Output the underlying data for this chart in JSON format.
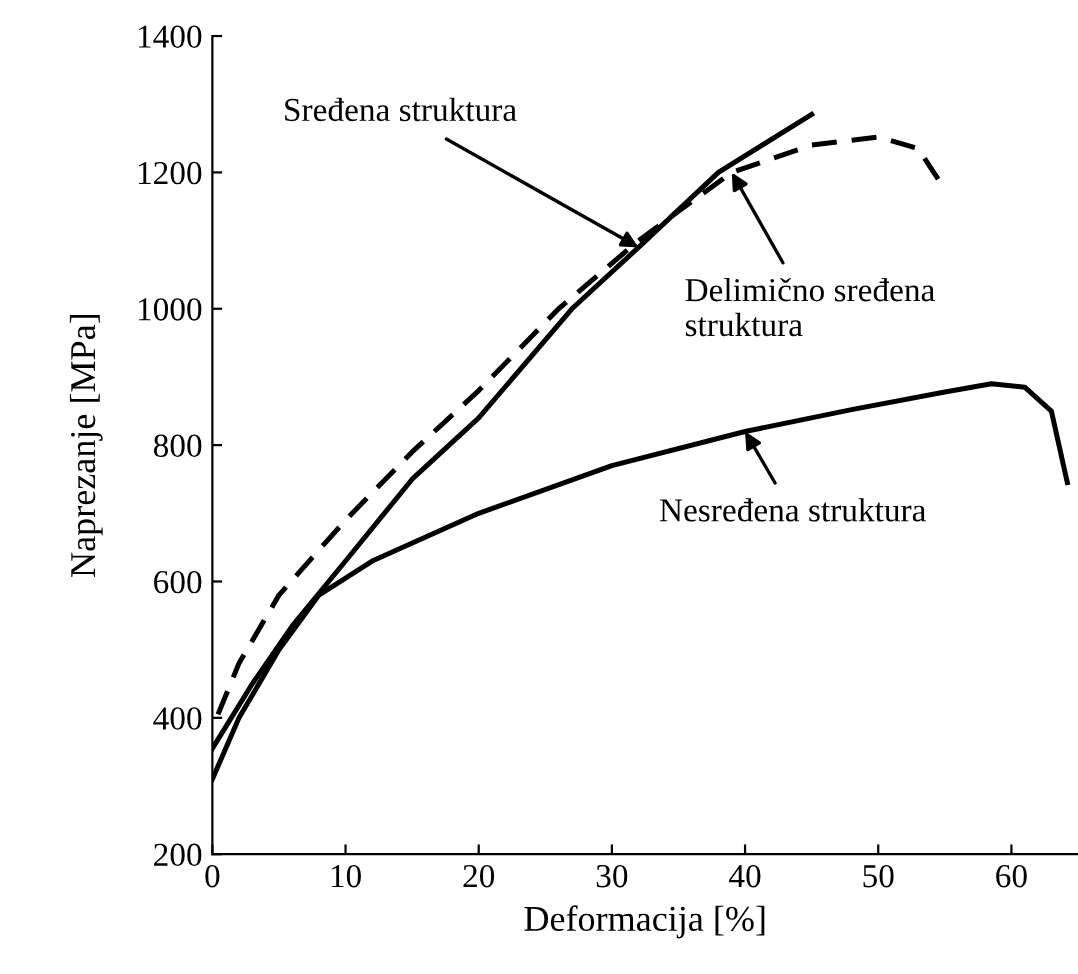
{
  "chart_data": {
    "type": "line",
    "xlabel": "Deformacija [%]",
    "ylabel": "Naprezanje [MPa]",
    "xlim": [
      0,
      65
    ],
    "ylim": [
      200,
      1400
    ],
    "xticks": [
      0,
      10,
      20,
      30,
      40,
      50,
      60
    ],
    "yticks": [
      200,
      400,
      600,
      800,
      1000,
      1200,
      1400
    ],
    "grid": false,
    "legend": false,
    "marker": "none",
    "series": [
      {
        "color": "#000000",
        "line_style": "solid",
        "x": [
          0,
          3,
          6,
          10,
          15,
          20,
          27,
          32,
          38,
          45
        ],
        "values": [
          355,
          450,
          535,
          630,
          750,
          840,
          1000,
          1090,
          1200,
          1285
        ]
      },
      {
        "color": "#000000",
        "line_style": "dashed",
        "x": [
          0,
          2,
          5,
          10,
          15,
          20,
          26,
          32,
          39,
          45,
          50,
          53,
          54.5
        ],
        "values": [
          385,
          480,
          580,
          690,
          790,
          880,
          1000,
          1100,
          1200,
          1240,
          1252,
          1235,
          1190
        ]
      },
      {
        "color": "#000000",
        "line_style": "solid",
        "x": [
          0,
          2,
          5,
          8,
          12,
          20,
          30,
          40,
          48,
          55,
          58.5,
          61,
          63,
          64.2
        ],
        "values": [
          310,
          400,
          500,
          580,
          630,
          700,
          770,
          820,
          852,
          878,
          890,
          885,
          850,
          745
        ]
      }
    ],
    "annotations": [
      {
        "text": "Sređena struktura",
        "x": 32,
        "y": 1090
      },
      {
        "text": "Delimično sređena\nstruktura",
        "x": 39,
        "y": 1200
      },
      {
        "text": "Nesređena struktura",
        "x": 40,
        "y": 820
      }
    ]
  }
}
